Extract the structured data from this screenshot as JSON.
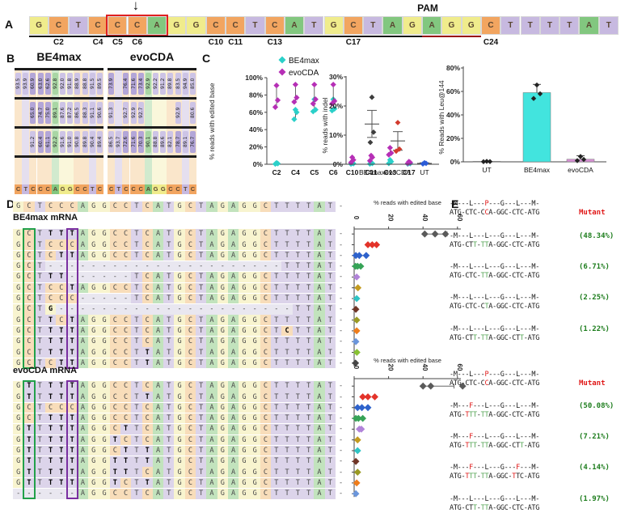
{
  "colors": {
    "base": {
      "A": "#82c77f",
      "C": "#f2a560",
      "G": "#f0ec8c",
      "T": "#c7b9e0"
    },
    "pastel": {
      "A": "#c2e3bd",
      "C": "#f8ddba",
      "G": "#f8f4cf",
      "T": "#dcd4ea",
      "-": "#e9e7f0"
    },
    "chip_light": "#cdc4e6",
    "chip_deep": "#b3a6d8",
    "chip_green": "#a9d6a4",
    "box_green": "#22a04a",
    "box_purple": "#7a2fa0",
    "arrow": "#111111",
    "target_box": "#e02020",
    "pam_underline": "#990000"
  },
  "panelA": {
    "label": "A",
    "pam": "PAM",
    "sequence": "GCTCCCAGGCCTCATGCTAGAGGCTTTTAT",
    "target_box_cells": [
      5,
      7
    ],
    "arrow_cell": 6,
    "protospacer_underline_cells": [
      1,
      20
    ],
    "pam_underline_cells": [
      21,
      23
    ],
    "position_labels": [
      [
        "C2",
        2
      ],
      [
        "C4",
        4
      ],
      [
        "C5",
        5
      ],
      [
        "C6",
        6
      ],
      [
        "C10",
        10
      ],
      [
        "C11",
        11
      ],
      [
        "C13",
        13
      ],
      [
        "C17",
        17
      ],
      [
        "C24",
        24
      ]
    ]
  },
  "panelB": {
    "label": "B",
    "sequence": "CTCCCAGGCCTC",
    "groups": [
      {
        "title": "BE4max",
        "rows": [
          [
            93.5,
            93.9,
            60.9,
            63.0,
            62.6,
            92.8,
            92.0,
            91.8,
            88.9,
            88.8,
            91.5,
            89.5
          ],
          [
            null,
            null,
            65.0,
            74.7,
            75.0,
            89.1,
            87.6,
            87.2,
            86.5,
            88.3,
            91.1,
            90.6
          ],
          [
            null,
            null,
            91.2,
            60.4,
            61.1,
            92.2,
            91.6,
            91.0,
            90.8,
            89.8,
            90.4,
            89.4
          ],
          [
            null,
            null,
            null,
            null,
            null,
            null,
            null,
            null,
            null,
            null,
            null,
            null
          ]
        ]
      },
      {
        "title": "evoCDA",
        "rows": [
          [
            73.9,
            null,
            76.4,
            71.6,
            73.4,
            92.9,
            92.2,
            91.2,
            89.8,
            83.5,
            94.9,
            85.0
          ],
          [
            91.3,
            null,
            92.7,
            92.9,
            92.7,
            null,
            null,
            null,
            null,
            92.9,
            null,
            80.6
          ],
          [
            86.5,
            93.7,
            72.6,
            71.6,
            70.3,
            90.1,
            88.8,
            89.6,
            82.1,
            78.7,
            89.1,
            76.7
          ],
          [
            null,
            null,
            null,
            null,
            null,
            null,
            null,
            null,
            null,
            null,
            null,
            null
          ]
        ]
      }
    ]
  },
  "panelC": {
    "label": "C",
    "legend": [
      {
        "label": "BE4max",
        "color": "#2bd0c9"
      },
      {
        "label": "evoCDA",
        "color": "#b62fb6"
      }
    ]
  },
  "panelD": {
    "label": "D",
    "reference": "GCTCCCAGGCCTCATGCTAGAGGCTTTTAT-",
    "chart_title": "% reads with edited base",
    "chart_ticks": [
      0,
      20,
      40,
      60
    ],
    "groups": [
      {
        "header": "BE4max mRNA",
        "rows": [
          {
            "seq": "GCTTTTAGGCCTCATGCTAGAGGCTTTTAT-",
            "bold": [
              4,
              5,
              6
            ],
            "color": "#5a5a5a",
            "vals": [
              41,
              47,
              53
            ],
            "err": [
              39.5,
              54
            ]
          },
          {
            "seq": "GCTCCCAGGCCTCATGCTAGAGGCTTTTAT-",
            "bold": [],
            "color": "#e3332a",
            "vals": [
              8,
              10.5,
              13
            ],
            "err": [
              7,
              13.5
            ]
          },
          {
            "seq": "GCTCTTAGGCCTCATGCTAGAGGCTTTTAT-",
            "bold": [
              5,
              6
            ],
            "color": "#2e62cc",
            "vals": [
              1,
              3,
              7
            ],
            "err": [
              0.5,
              7.5
            ]
          },
          {
            "seq": "GCT----------------------TTTAT-",
            "bold": [],
            "color": "#36a357",
            "vals": [
              0.8,
              2,
              3.8
            ]
          },
          {
            "seq": "GCTTT------TCATGCTAGAGGCTTTTAT-",
            "bold": [
              4,
              5
            ],
            "color": "#b183d9",
            "vals": [
              1.5
            ]
          },
          {
            "seq": "GCTCCTAGGCCTCATGCTAGAGGCTTTTAT-",
            "bold": [
              6
            ],
            "color": "#c39b1f",
            "vals": [
              2.2
            ]
          },
          {
            "seq": "GCTCCC-----TCATGCTAGAGGCTTTTAT-",
            "bold": [],
            "color": "#2ec4c4",
            "vals": [
              1.5
            ]
          },
          {
            "seq": "GCTG----------------------TTAT-",
            "bold": [
              4
            ],
            "color": "#6f3526",
            "vals": [
              1
            ]
          },
          {
            "seq": "GCTTCTAGGCCTCATGCTAGAGGCTTTTAT-",
            "bold": [
              4,
              6
            ],
            "color": "#9a9a23",
            "vals": [
              1.5
            ]
          },
          {
            "seq": "GCTTTTAGGCCTCATGCTAGAGGCTCTTAT-",
            "bold": [
              4,
              5,
              6,
              26
            ],
            "color": "#ef7d1a",
            "vals": [
              1.5
            ]
          },
          {
            "seq": "GCTTTTAGGCCTCATGCTAGAGGCTTTTAT-",
            "bold": [
              4,
              5,
              6
            ],
            "color": "#6b96db",
            "vals": [
              1
            ]
          },
          {
            "seq": "GCTTTTAGGCCTTATGCTAGAGGCTTTTAT-",
            "bold": [
              4,
              5,
              6,
              13
            ],
            "color": "#88c233",
            "vals": [
              1.6
            ]
          },
          {
            "seq": "GCTCTTAGGCCTTATGCTAGAGGCTTTTAT-",
            "bold": [
              5,
              6,
              13
            ],
            "color": "#454545",
            "vals": [
              0.8
            ]
          }
        ]
      },
      {
        "header": "evoCDA mRNA",
        "rows": [
          {
            "seq": "GTTTTTAGGCCTCATGCTAGAGGCTTTTAT-",
            "bold": [
              2,
              4,
              5,
              6
            ],
            "color": "#5a5a5a",
            "vals": [
              40,
              44.5,
              63
            ],
            "err": [
              38,
              58
            ]
          },
          {
            "seq": "GTTTTTAGGCCTTATGCTAGAGGCTTTTAT-",
            "bold": [
              2,
              4,
              5,
              6,
              13
            ],
            "color": "#e3332a",
            "vals": [
              5,
              8,
              12
            ]
          },
          {
            "seq": "GCTCCCAGGCCTCATGCTAGAGGCTTTTAT-",
            "bold": [],
            "color": "#2e62cc",
            "vals": [
              2,
              4.5,
              8
            ]
          },
          {
            "seq": "GCTTTTAGGCCTCATGCTAGAGGCTTTTAT-",
            "bold": [
              4,
              5,
              6
            ],
            "color": "#36a357",
            "vals": [
              1,
              2.5,
              5
            ]
          },
          {
            "seq": "GTTTTTAGGCTTCATGCTAGAGGCTTTTAT-",
            "bold": [
              2,
              4,
              5,
              6,
              11
            ],
            "color": "#b183d9",
            "vals": [
              3,
              4.2
            ]
          },
          {
            "seq": "GTTTTTAGGTCTCATGCTAGAGGCTTTTAT-",
            "bold": [
              2,
              4,
              5,
              6,
              10
            ],
            "color": "#c39b1f",
            "vals": [
              2
            ]
          },
          {
            "seq": "GTTTTTAGGCTTTATGCTAGAGGCTTTTAT-",
            "bold": [
              2,
              4,
              5,
              6,
              11,
              13
            ],
            "color": "#2ec4c4",
            "vals": [
              2
            ]
          },
          {
            "seq": "GTTTTTAGGTTTTATGCTAGAGGCTTTTAT-",
            "bold": [
              2,
              4,
              5,
              6,
              10,
              11,
              13
            ],
            "color": "#6f3526",
            "vals": [
              1
            ]
          },
          {
            "seq": "GTTTTTAGGTTTCATGCTAGAGGCTTTTAT-",
            "bold": [
              2,
              4,
              5,
              6,
              10,
              11
            ],
            "color": "#9a9a23",
            "vals": [
              2
            ]
          },
          {
            "seq": "GTTTTTAGGTCTTATGCTAGAGGCTTTTAT-",
            "bold": [
              2,
              4,
              5,
              6,
              10,
              13
            ],
            "color": "#ef7d1a",
            "vals": [
              1.5
            ]
          },
          {
            "seq": "------AGGCCTCATGCTAGAGGCTTTTAT-",
            "bold": [],
            "color": "#6b96db",
            "vals": [
              1
            ]
          }
        ]
      }
    ]
  },
  "panelE": {
    "label": "E",
    "groups": [
      {
        "entries": [
          {
            "p": "-M---L---P---G---L---M-",
            "pRed": [
              9
            ],
            "d": "ATG-CTC-CCA-GGC-CTC-ATG",
            "dRed": [
              9
            ],
            "dGreen": [],
            "label": "Mutant",
            "type": "mut"
          },
          {
            "p": "-M---L---L---G---L---M-",
            "pRed": [],
            "d": "ATG-CTT-TTA-GGC-CTC-ATG",
            "dRed": [],
            "dGreen": [
              6,
              8,
              9
            ],
            "label": "(48.34%)",
            "type": "pct"
          },
          {
            "p": "-M---L---L---G---L---M-",
            "pRed": [],
            "d": "ATG-CTC-TTA-GGC-CTC-ATG",
            "dRed": [],
            "dGreen": [
              8,
              9
            ],
            "label": "(6.71%)",
            "type": "pct"
          },
          {
            "p": "-M---L---L---G---L---M-",
            "pRed": [],
            "d": "ATG-CTC-CTA-GGC-CTC-ATG",
            "dRed": [],
            "dGreen": [
              9
            ],
            "label": "(2.25%)",
            "type": "pct"
          },
          {
            "p": "-M---L---L---G---L---M-",
            "pRed": [],
            "d": "ATG-CTT-TTA-GGC-CTT-ATG",
            "dRed": [],
            "dGreen": [
              6,
              8,
              9,
              18
            ],
            "label": "(1.22%)",
            "type": "pct"
          }
        ]
      },
      {
        "entries": [
          {
            "p": "-M---L---P---G---L---M-",
            "pRed": [
              9
            ],
            "d": "ATG-CTC-CCA-GGC-CTC-ATG",
            "dRed": [
              9
            ],
            "dGreen": [],
            "label": "Mutant",
            "type": "mut"
          },
          {
            "p": "-M---F---L---G---L---M-",
            "pRed": [
              5
            ],
            "d": "ATG-TTT-TTA-GGC-CTC-ATG",
            "dRed": [
              4
            ],
            "dGreen": [
              5,
              6,
              8,
              9
            ],
            "label": "(50.08%)",
            "type": "pct"
          },
          {
            "p": "-M---F---L---G---L---M-",
            "pRed": [
              5
            ],
            "d": "ATG-TTT-TTA-GGC-CTT-ATG",
            "dRed": [
              4
            ],
            "dGreen": [
              5,
              6,
              8,
              9,
              18
            ],
            "label": "(7.21%)",
            "type": "pct"
          },
          {
            "p": "-M---F---L---G---F---M-",
            "pRed": [
              5,
              17
            ],
            "d": "ATG-TTT-TTA-GGC-TTC-ATG",
            "dRed": [
              4,
              16
            ],
            "dGreen": [
              5,
              6,
              8,
              9
            ],
            "label": "(4.14%)",
            "type": "pct"
          },
          {
            "p": "-M---L---L---G---L---M-",
            "pRed": [],
            "d": "ATG-CTT-TTA-GGC-CTC-ATG",
            "dRed": [],
            "dGreen": [
              6,
              8,
              9
            ],
            "label": "(1.97%)",
            "type": "pct"
          }
        ]
      }
    ]
  },
  "chart_data": [
    {
      "id": "edited_base_by_position",
      "type": "scatter",
      "ylabel": "% reads with edited base",
      "ylim": [
        0,
        100
      ],
      "yticks": [
        0,
        20,
        40,
        60,
        80,
        100
      ],
      "categories": [
        "C2",
        "C4",
        "C5",
        "C6",
        "C10",
        "C11",
        "C13",
        "C17"
      ],
      "legend_position": "top",
      "series": [
        {
          "name": "BE4max",
          "color": "#2bd0c9",
          "points": [
            [
              0.3,
              0.8,
              1.5
            ],
            [
              52,
              60,
              63
            ],
            [
              61,
              63,
              75
            ],
            [
              62,
              64,
              75
            ],
            [
              0.3,
              0.8,
              1.5
            ],
            [
              0.5,
              1,
              2
            ],
            [
              1,
              3,
              5
            ],
            [
              0.3,
              0.8,
              1.5
            ]
          ]
        },
        {
          "name": "evoCDA",
          "color": "#b62fb6",
          "points": [
            [
              66,
              74,
              91
            ],
            [
              72,
              77,
              92
            ],
            [
              70,
              75,
              92
            ],
            [
              70,
              73,
              92
            ],
            [
              2,
              5,
              8
            ],
            [
              4,
              8,
              10
            ],
            [
              11,
              13,
              19
            ],
            [
              1,
              2,
              3
            ]
          ]
        }
      ]
    },
    {
      "id": "indel",
      "type": "scatter",
      "ylabel": "% reads with indel",
      "ylim": [
        0,
        30
      ],
      "yticks": [
        0,
        10,
        20,
        30
      ],
      "categories": [
        "BE4max",
        "evoCDA",
        "UT"
      ],
      "point_colors": [
        "#3d3d3d",
        "#d23b2e",
        "#2a5bd7"
      ],
      "points": [
        [
          7.5,
          11,
          23
        ],
        [
          4.5,
          5.2,
          14.3
        ],
        [
          0.1,
          0.3,
          0.5
        ]
      ],
      "mean": [
        13.8,
        8.0,
        0.3
      ],
      "whiskers": [
        [
          9.2,
          18.5
        ],
        [
          4.8,
          11.2
        ],
        [
          0.1,
          0.5
        ]
      ]
    },
    {
      "id": "leu144",
      "type": "bar",
      "ylabel": "% Reads with Leu@144",
      "ylim": [
        0,
        80
      ],
      "yticks": [
        0,
        20,
        40,
        60,
        80
      ],
      "categories": [
        "UT",
        "BE4max",
        "evoCDA"
      ],
      "values": [
        0.4,
        59,
        2.2
      ],
      "bar_colors": [
        "#555555",
        "#42e4de",
        "#d591d3"
      ],
      "points": [
        [
          0.1,
          0.2,
          0.4
        ],
        [
          54,
          58,
          65.5
        ],
        [
          1,
          2,
          4.5
        ]
      ],
      "whisker_top": [
        0.6,
        66,
        5.2
      ]
    }
  ]
}
